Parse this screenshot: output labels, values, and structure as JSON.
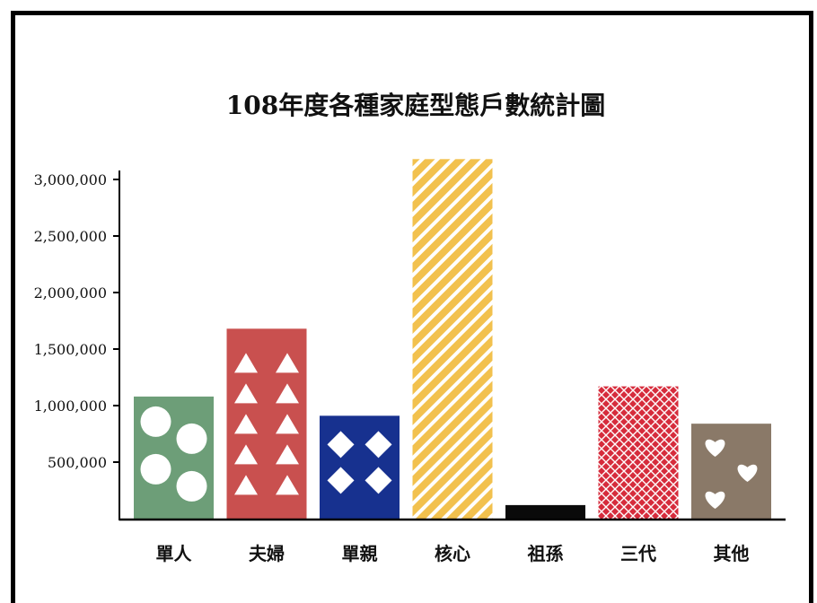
{
  "chart_data": {
    "type": "bar",
    "title": "108年度各種家庭型態戶數統計圖",
    "xlabel": "",
    "ylabel": "",
    "ylim": [
      0,
      3000000
    ],
    "yticks": [
      500000,
      1000000,
      1500000,
      2000000,
      2500000,
      3000000
    ],
    "ytick_labels": [
      "500,000",
      "1,000,000",
      "1,500,000",
      "2,000,000",
      "2,500,000",
      "3,000,000"
    ],
    "grid": false,
    "categories": [
      "單人",
      "夫婦",
      "單親",
      "核心",
      "祖孫",
      "三代",
      "其他"
    ],
    "values": [
      1080000,
      1680000,
      910000,
      3180000,
      120000,
      1170000,
      840000
    ],
    "colors": [
      "#6d9e78",
      "#c9504f",
      "#17318f",
      "#f2c14e",
      "#0a0a0a",
      "#d62c3c",
      "#8a7968"
    ],
    "patterns": [
      "circles",
      "triangles",
      "diamonds",
      "diagonal-stripes",
      "solid",
      "crosshatch",
      "hearts"
    ]
  }
}
